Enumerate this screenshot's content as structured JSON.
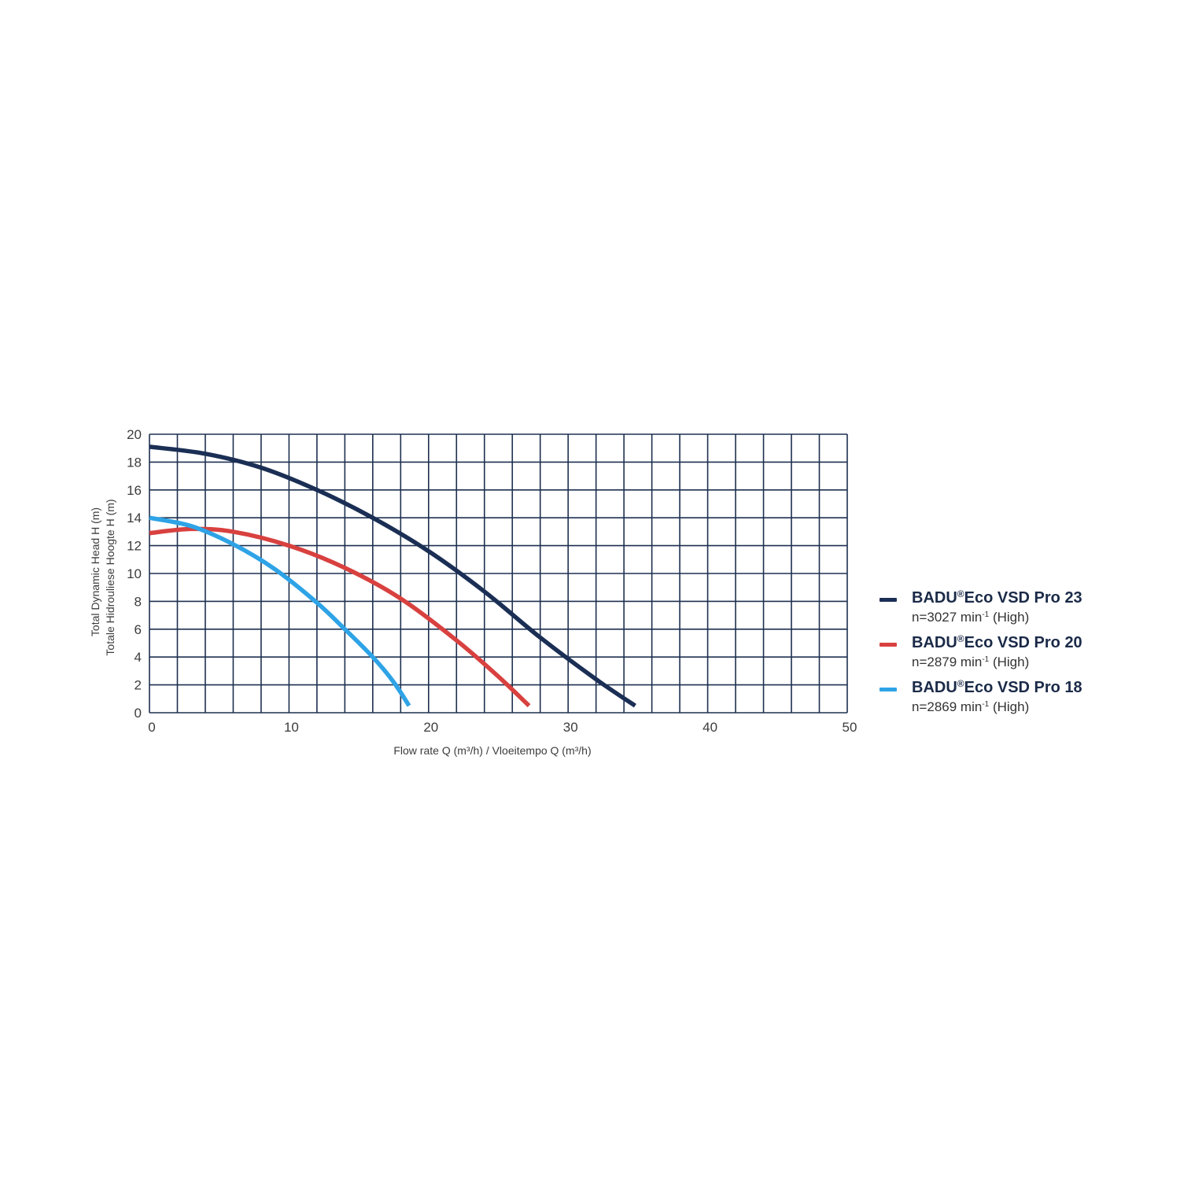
{
  "chart_data": {
    "type": "line",
    "title": "",
    "xlabel": "Flow rate Q (m³/h) / Vloeitempo Q (m³/h)",
    "ylabel_lines": [
      "Total Dynamic Head H (m)",
      "Totale Hidrouliese Hoogte H (m)"
    ],
    "xlim": [
      0,
      50
    ],
    "ylim": [
      0,
      20
    ],
    "x_ticks": [
      "0",
      "10",
      "20",
      "30",
      "40",
      "50"
    ],
    "y_ticks": [
      "0",
      "2",
      "4",
      "6",
      "8",
      "10",
      "12",
      "14",
      "16",
      "18",
      "20"
    ],
    "grid": true,
    "grid_color": "#1e3050",
    "legend_position": "right",
    "series": [
      {
        "name_prefix": "BADU",
        "name_reg": "®",
        "name_suffix": "Eco VSD Pro 23",
        "speed_prefix": "n=3027 min",
        "speed_sup": "-1",
        "speed_suffix": " (High)",
        "color": "#1b2f55",
        "x": [
          0,
          4,
          8,
          12,
          16,
          20,
          24,
          28,
          32,
          34.8
        ],
        "y": [
          19.1,
          18.6,
          17.6,
          16.0,
          14.0,
          11.6,
          8.7,
          5.4,
          2.4,
          0.5
        ]
      },
      {
        "name_prefix": "BADU",
        "name_reg": "®",
        "name_suffix": "Eco VSD Pro 20",
        "speed_prefix": "n=2879 min",
        "speed_sup": "-1",
        "speed_suffix": " (High)",
        "color": "#d8413f",
        "x": [
          0,
          3,
          6,
          10,
          14,
          18,
          22,
          25,
          27.2
        ],
        "y": [
          12.9,
          13.2,
          13.0,
          12.0,
          10.4,
          8.2,
          5.2,
          2.6,
          0.5
        ]
      },
      {
        "name_prefix": "BADU",
        "name_reg": "®",
        "name_suffix": "Eco VSD Pro 18",
        "speed_prefix": "n=2869 min",
        "speed_sup": "-1",
        "speed_suffix": " (High)",
        "color": "#2ea3e6",
        "x": [
          0,
          3,
          6,
          9,
          12,
          14,
          16,
          17.5,
          18.6
        ],
        "y": [
          14.0,
          13.4,
          12.1,
          10.3,
          7.9,
          6.0,
          4.0,
          2.2,
          0.5
        ]
      }
    ]
  }
}
